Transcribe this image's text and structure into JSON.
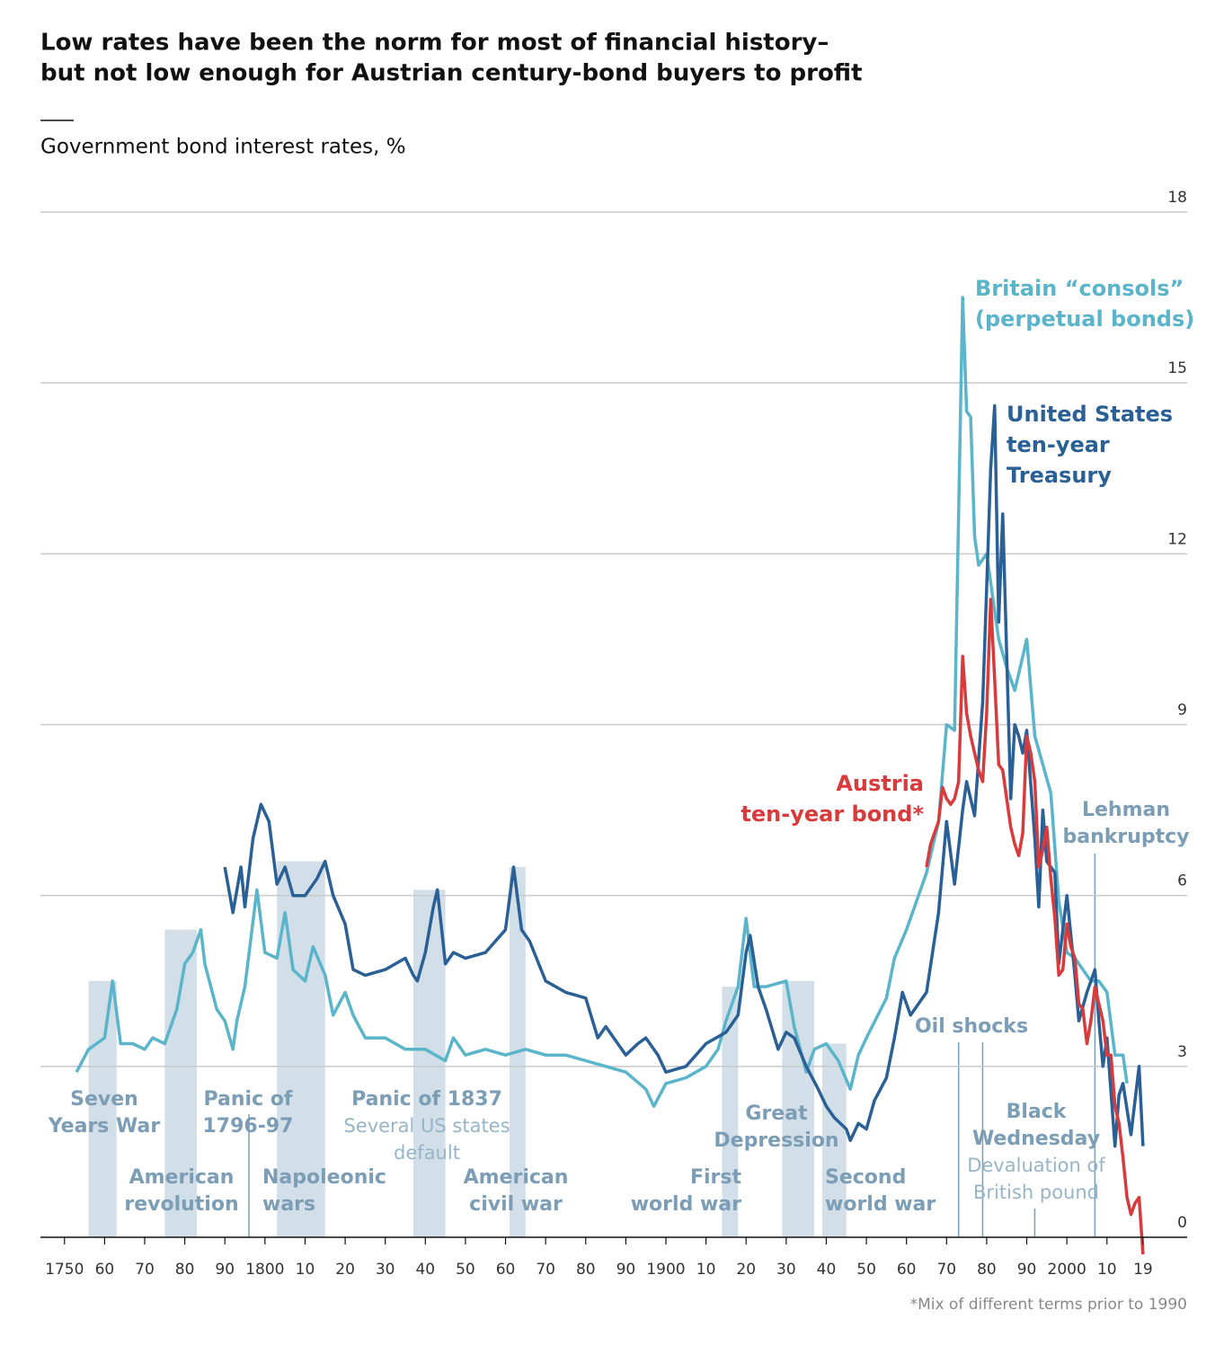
{
  "chart_data": {
    "type": "line",
    "title": [
      "Low rates have been the norm for most of financial history–",
      "but not low enough for Austrian century-bond buyers to profit"
    ],
    "subtitle": "Government bond interest rates, %",
    "footnote": "*Mix of different terms prior to 1990",
    "xlim": [
      1744,
      2030
    ],
    "ylim": [
      0,
      18
    ],
    "yticks": [
      0,
      3,
      6,
      9,
      12,
      15,
      18
    ],
    "grid": true,
    "xticks": [
      1750,
      {
        "value": 1760,
        "label": "60"
      },
      {
        "value": 1770,
        "label": "70"
      },
      {
        "value": 1780,
        "label": "80"
      },
      {
        "value": 1790,
        "label": "90"
      },
      1800,
      {
        "value": 1810,
        "label": "10"
      },
      {
        "value": 1820,
        "label": "20"
      },
      {
        "value": 1830,
        "label": "30"
      },
      {
        "value": 1840,
        "label": "40"
      },
      {
        "value": 1850,
        "label": "50"
      },
      {
        "value": 1860,
        "label": "60"
      },
      {
        "value": 1870,
        "label": "70"
      },
      {
        "value": 1880,
        "label": "80"
      },
      {
        "value": 1890,
        "label": "90"
      },
      1900,
      {
        "value": 1910,
        "label": "10"
      },
      {
        "value": 1920,
        "label": "20"
      },
      {
        "value": 1930,
        "label": "30"
      },
      {
        "value": 1940,
        "label": "40"
      },
      {
        "value": 1950,
        "label": "50"
      },
      {
        "value": 1960,
        "label": "60"
      },
      {
        "value": 1970,
        "label": "70"
      },
      {
        "value": 1980,
        "label": "80"
      },
      {
        "value": 1990,
        "label": "90"
      },
      2000,
      {
        "value": 2010,
        "label": "10"
      },
      {
        "value": 2019,
        "label": "19"
      }
    ],
    "series": [
      {
        "name": [
          "Britain “consols”",
          "(perpetual bonds)"
        ],
        "color": "#5ab4ca",
        "x": [
          1753,
          1756,
          1758,
          1760,
          1762,
          1764,
          1767,
          1770,
          1772,
          1775,
          1778,
          1780,
          1782,
          1784,
          1785,
          1788,
          1790,
          1792,
          1793,
          1795,
          1798,
          1800,
          1803,
          1805,
          1807,
          1810,
          1812,
          1815,
          1817,
          1820,
          1822,
          1825,
          1830,
          1835,
          1840,
          1845,
          1847,
          1850,
          1855,
          1860,
          1865,
          1870,
          1875,
          1880,
          1885,
          1890,
          1895,
          1897,
          1900,
          1905,
          1910,
          1913,
          1915,
          1918,
          1920,
          1922,
          1925,
          1930,
          1932,
          1935,
          1937,
          1940,
          1943,
          1946,
          1948,
          1950,
          1955,
          1957,
          1960,
          1965,
          1968,
          1970,
          1972,
          1974,
          1975,
          1976,
          1977,
          1978,
          1980,
          1982,
          1983,
          1985,
          1987,
          1989,
          1990,
          1992,
          1994,
          1996,
          1998,
          2000,
          2002,
          2004,
          2006,
          2008,
          2010,
          2012,
          2014,
          2015
        ],
        "values": [
          2.9,
          3.3,
          3.4,
          3.5,
          4.5,
          3.4,
          3.4,
          3.3,
          3.5,
          3.4,
          4.0,
          4.8,
          5.0,
          5.4,
          4.8,
          4.0,
          3.8,
          3.3,
          3.8,
          4.4,
          6.1,
          5.0,
          4.9,
          5.7,
          4.7,
          4.5,
          5.1,
          4.6,
          3.9,
          4.3,
          3.9,
          3.5,
          3.5,
          3.3,
          3.3,
          3.1,
          3.5,
          3.2,
          3.3,
          3.2,
          3.3,
          3.2,
          3.2,
          3.1,
          3.0,
          2.9,
          2.6,
          2.3,
          2.7,
          2.8,
          3.0,
          3.3,
          3.8,
          4.4,
          5.6,
          4.4,
          4.4,
          4.5,
          3.7,
          2.9,
          3.3,
          3.4,
          3.1,
          2.6,
          3.2,
          3.5,
          4.2,
          4.9,
          5.4,
          6.4,
          7.3,
          9.0,
          8.9,
          16.5,
          14.5,
          14.4,
          12.3,
          11.8,
          12.0,
          11.0,
          10.5,
          10.0,
          9.6,
          10.2,
          10.5,
          8.8,
          8.3,
          7.8,
          5.9,
          5.0,
          4.9,
          4.7,
          4.5,
          4.5,
          4.3,
          3.2,
          3.2,
          2.7
        ]
      },
      {
        "name": [
          "United States",
          "ten-year",
          "Treasury"
        ],
        "color": "#2a6095",
        "x": [
          1790,
          1792,
          1794,
          1795,
          1797,
          1799,
          1801,
          1803,
          1805,
          1807,
          1810,
          1813,
          1815,
          1817,
          1820,
          1822,
          1825,
          1830,
          1835,
          1837,
          1838,
          1840,
          1842,
          1843,
          1845,
          1847,
          1850,
          1855,
          1860,
          1862,
          1864,
          1866,
          1870,
          1875,
          1880,
          1883,
          1885,
          1890,
          1893,
          1895,
          1898,
          1900,
          1905,
          1910,
          1915,
          1918,
          1920,
          1921,
          1923,
          1925,
          1928,
          1930,
          1932,
          1935,
          1938,
          1940,
          1942,
          1945,
          1946,
          1948,
          1950,
          1952,
          1955,
          1957,
          1959,
          1961,
          1965,
          1968,
          1970,
          1972,
          1974,
          1975,
          1977,
          1979,
          1980,
          1981,
          1982,
          1983,
          1984,
          1986,
          1987,
          1988,
          1989,
          1990,
          1992,
          1993,
          1994,
          1995,
          1997,
          1998,
          2000,
          2002,
          2003,
          2005,
          2007,
          2008,
          2009,
          2010,
          2012,
          2013,
          2014,
          2016,
          2018,
          2019
        ],
        "values": [
          6.5,
          5.7,
          6.5,
          5.8,
          7.0,
          7.6,
          7.3,
          6.2,
          6.5,
          6.0,
          6.0,
          6.3,
          6.6,
          6.0,
          5.5,
          4.7,
          4.6,
          4.7,
          4.9,
          4.6,
          4.5,
          5.0,
          5.8,
          6.1,
          4.8,
          5.0,
          4.9,
          5.0,
          5.4,
          6.5,
          5.4,
          5.2,
          4.5,
          4.3,
          4.2,
          3.5,
          3.7,
          3.2,
          3.4,
          3.5,
          3.2,
          2.9,
          3.0,
          3.4,
          3.6,
          3.9,
          5.0,
          5.3,
          4.4,
          4.0,
          3.3,
          3.6,
          3.5,
          3.0,
          2.6,
          2.3,
          2.1,
          1.9,
          1.7,
          2.0,
          1.9,
          2.4,
          2.8,
          3.5,
          4.3,
          3.9,
          4.3,
          5.7,
          7.3,
          6.2,
          7.5,
          8.0,
          7.4,
          9.4,
          11.4,
          13.5,
          14.6,
          10.8,
          12.7,
          7.7,
          9.0,
          8.8,
          8.5,
          8.9,
          7.0,
          5.8,
          7.5,
          6.6,
          6.4,
          4.8,
          6.0,
          4.6,
          3.8,
          4.3,
          4.7,
          3.8,
          3.0,
          3.5,
          1.6,
          2.5,
          2.7,
          1.8,
          3.0,
          1.6
        ]
      },
      {
        "name": [
          "Austria",
          "ten-year bond*"
        ],
        "color": "#d93a3c",
        "x": [
          1965,
          1966,
          1967,
          1968,
          1969,
          1970,
          1971,
          1972,
          1973,
          1974,
          1975,
          1976,
          1977,
          1978,
          1979,
          1980,
          1981,
          1982,
          1983,
          1984,
          1985,
          1986,
          1987,
          1988,
          1989,
          1990,
          1991,
          1992,
          1993,
          1994,
          1995,
          1996,
          1997,
          1998,
          1999,
          2000,
          2001,
          2002,
          2003,
          2004,
          2005,
          2006,
          2007,
          2008,
          2009,
          2010,
          2011,
          2012,
          2013,
          2014,
          2015,
          2016,
          2017,
          2018,
          2019
        ],
        "values": [
          6.5,
          6.9,
          7.1,
          7.3,
          7.9,
          7.7,
          7.6,
          7.7,
          8.0,
          10.2,
          9.2,
          8.8,
          8.5,
          8.2,
          8.0,
          9.2,
          11.2,
          9.8,
          8.3,
          8.2,
          7.7,
          7.2,
          6.9,
          6.7,
          7.1,
          8.8,
          8.5,
          8.0,
          6.5,
          6.8,
          7.2,
          6.3,
          5.6,
          4.6,
          4.7,
          5.5,
          5.1,
          4.9,
          4.1,
          4.0,
          3.4,
          3.8,
          4.4,
          4.1,
          3.8,
          3.2,
          3.2,
          2.3,
          2.0,
          1.4,
          0.7,
          0.4,
          0.6,
          0.7,
          -0.3
        ]
      }
    ],
    "periods": [
      {
        "label": [
          "Seven",
          "Years War"
        ],
        "start": 1756,
        "end": 1763
      },
      {
        "label": [
          "American",
          "revolution"
        ],
        "start": 1775,
        "end": 1783
      },
      {
        "label": [
          "Napoleonic",
          "wars"
        ],
        "start": 1803,
        "end": 1815
      },
      {
        "label": [
          "Panic of 1837"
        ],
        "note": [
          "Several US states",
          "default"
        ],
        "start": 1837,
        "end": 1845
      },
      {
        "label": [
          "American",
          "civil war"
        ],
        "start": 1861,
        "end": 1865
      },
      {
        "label": [
          "First",
          "world war"
        ],
        "start": 1914,
        "end": 1918
      },
      {
        "label": [
          "Great",
          "Depression"
        ],
        "start": 1929,
        "end": 1937
      },
      {
        "label": [
          "Second",
          "world war"
        ],
        "start": 1939,
        "end": 1945
      }
    ],
    "events": [
      {
        "label": [
          "Panic of",
          "1796-97"
        ],
        "x": [
          1796
        ]
      },
      {
        "label": [
          "Oil shocks"
        ],
        "x": [
          1973,
          1979
        ]
      },
      {
        "label": [
          "Black",
          "Wednesday"
        ],
        "note": [
          "Devaluation of",
          "British pound"
        ],
        "x": [
          1992
        ]
      },
      {
        "label": [
          "Lehman",
          "bankruptcy"
        ],
        "x": [
          2007
        ]
      }
    ]
  }
}
